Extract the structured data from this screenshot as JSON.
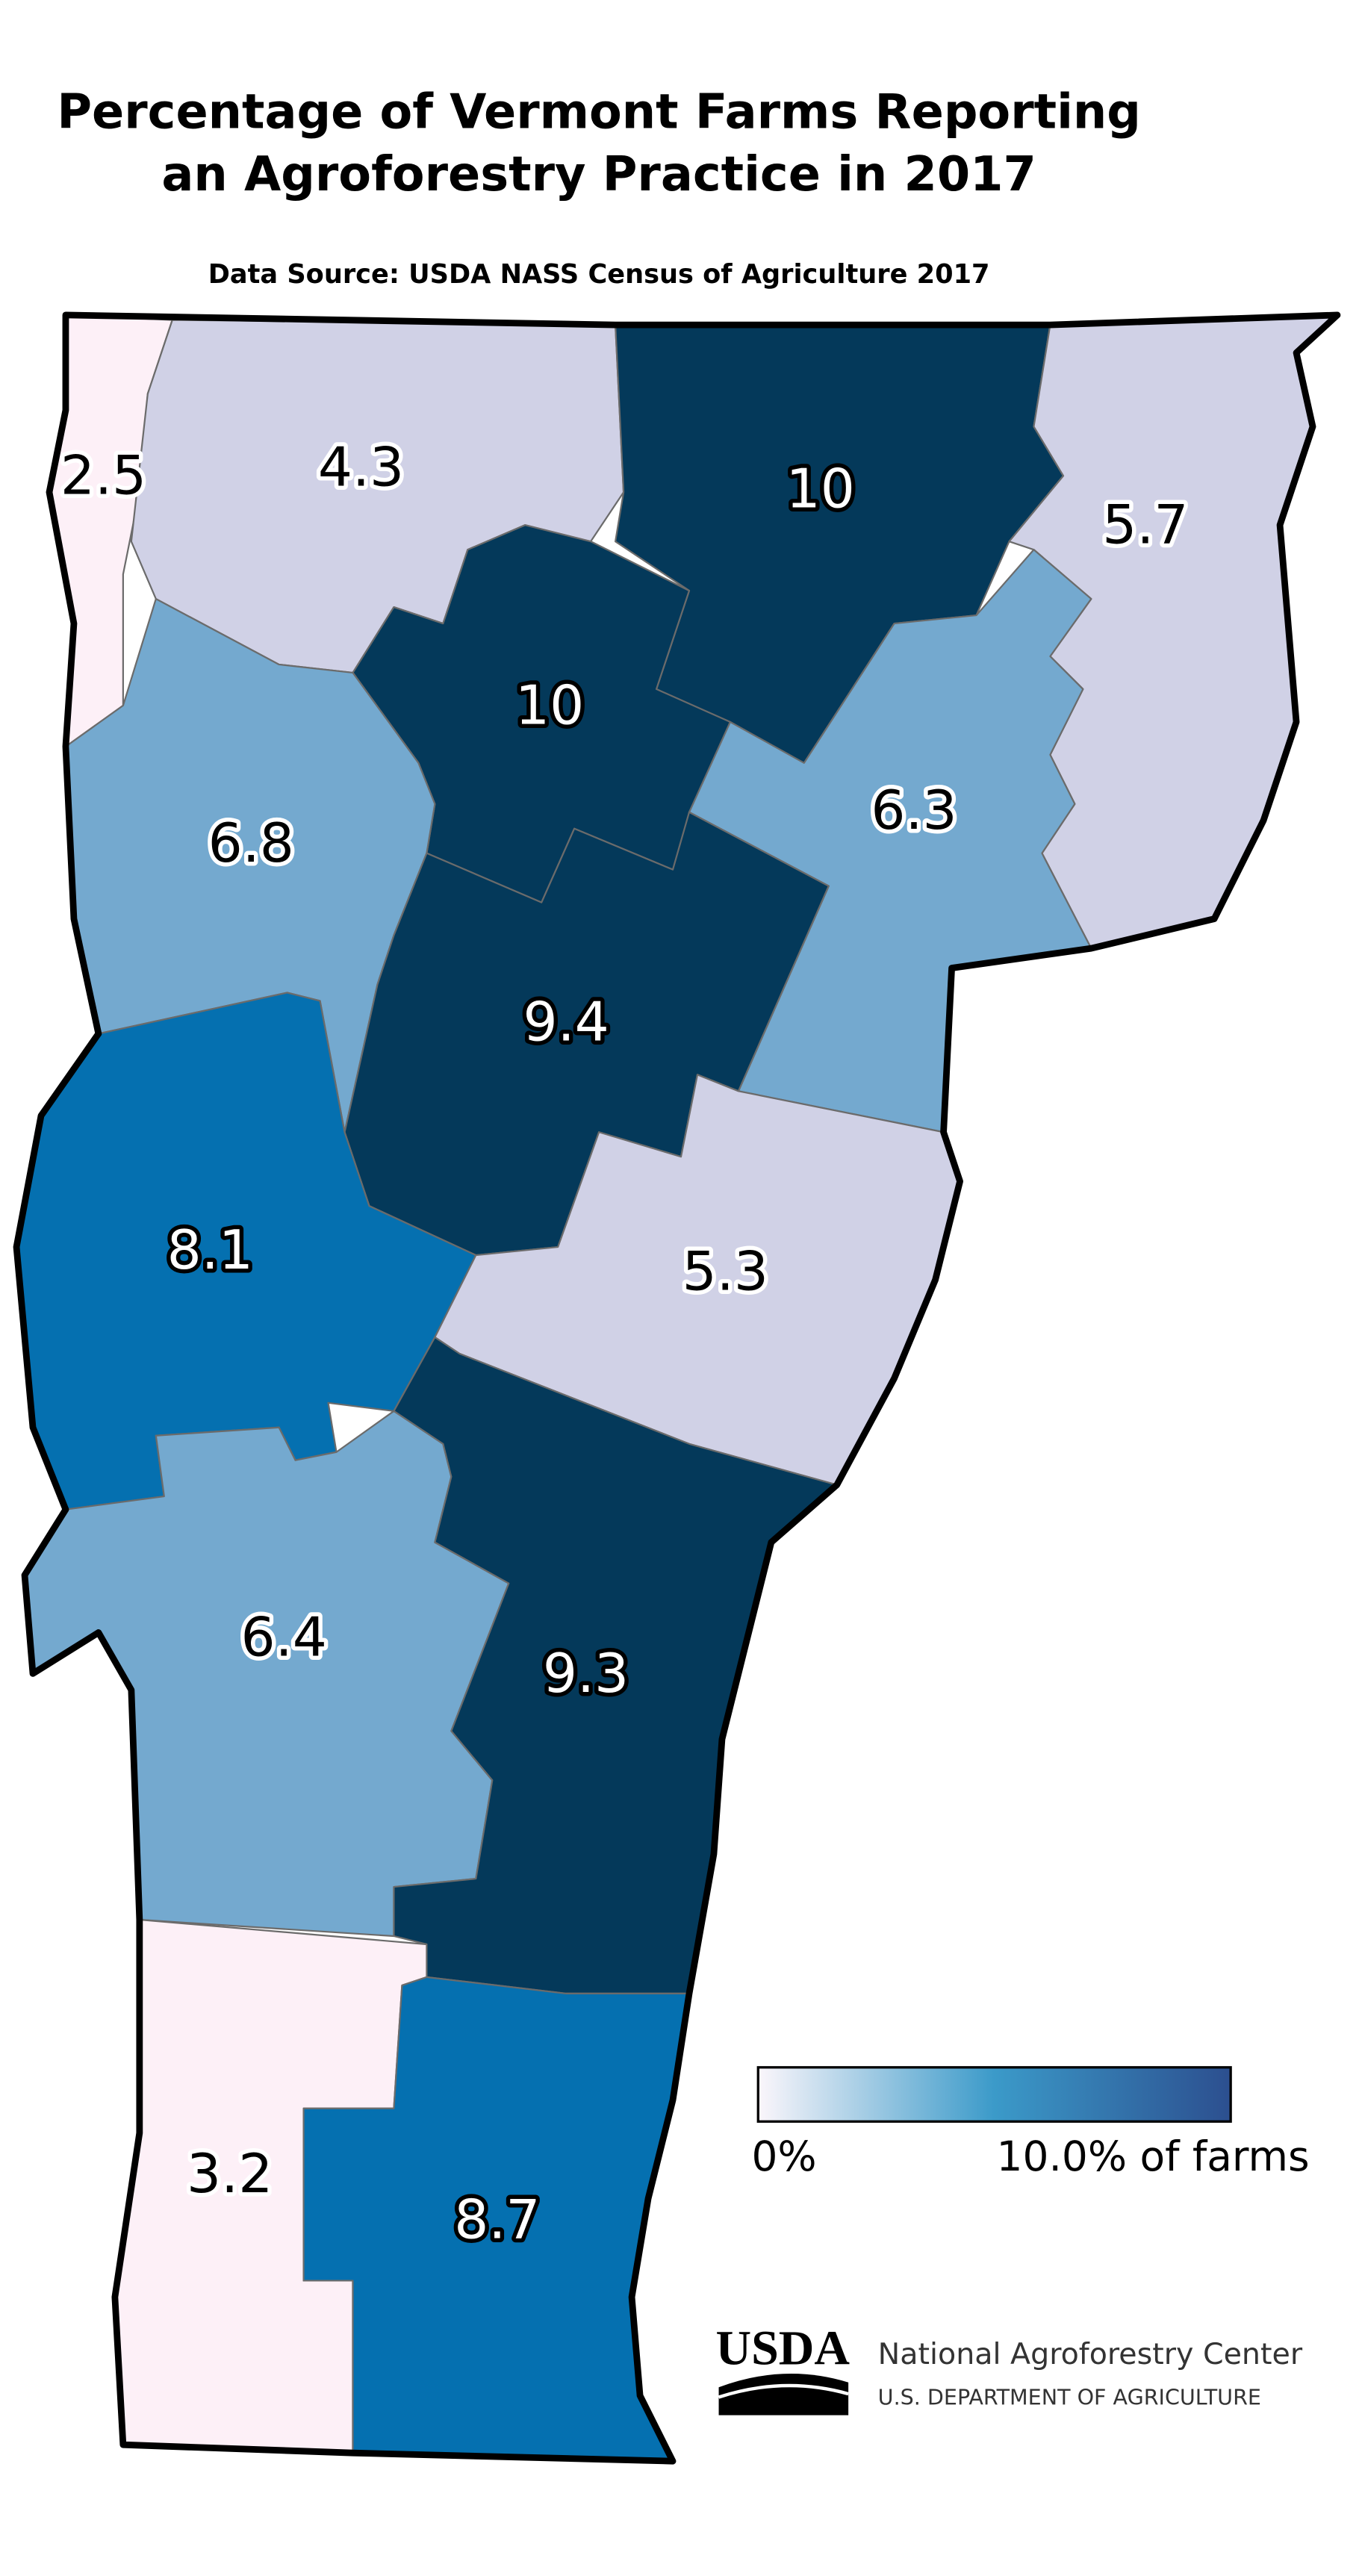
{
  "header": {
    "title_lines": [
      "Percentage of Vermont Farms Reporting",
      "an Agroforestry Practice in 2017"
    ],
    "subtitle": "Data Source: USDA NASS Census of Agriculture 2017"
  },
  "regions": [
    {
      "value": 2.5,
      "color": "#fdf0f7"
    },
    {
      "value": 4.3,
      "color": "#d0d1e6"
    },
    {
      "value": 10,
      "color": "#04395a"
    },
    {
      "value": 5.7,
      "color": "#d0d1e6"
    },
    {
      "value": 10,
      "color": "#04395a"
    },
    {
      "value": 6.3,
      "color": "#74a9cf"
    },
    {
      "value": 6.8,
      "color": "#74a9cf"
    },
    {
      "value": 9.4,
      "color": "#04395a"
    },
    {
      "value": 8.1,
      "color": "#0570b0"
    },
    {
      "value": 5.3,
      "color": "#d0d1e6"
    },
    {
      "value": 6.4,
      "color": "#74a9cf"
    },
    {
      "value": 9.3,
      "color": "#04395a"
    },
    {
      "value": 3.2,
      "color": "#fdf0f7"
    },
    {
      "value": 8.7,
      "color": "#0570b0"
    }
  ],
  "legend": {
    "min_label": "0%",
    "max_label": "10.0% of farms",
    "colors": [
      "#fbf6fb",
      "#3b9ac9",
      "#2c4f8f"
    ]
  },
  "footer": {
    "logo": "USDA",
    "org": "National Agroforestry Center",
    "dept": "U.S. DEPARTMENT OF AGRICULTURE"
  }
}
